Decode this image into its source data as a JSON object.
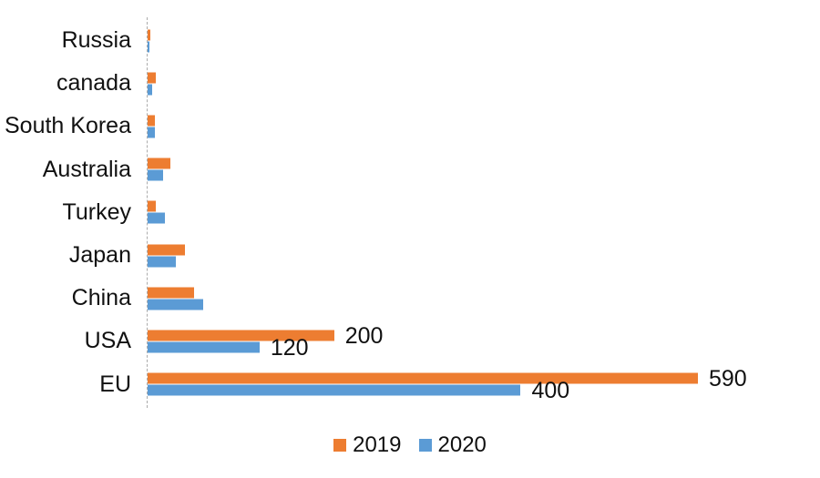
{
  "chart_data": {
    "type": "bar",
    "orientation": "horizontal",
    "title": "",
    "xlabel": "",
    "ylabel": "",
    "grid": "off",
    "background": "#FFFFFF",
    "text_color": "#111111",
    "axis_line_color": "#ABABAB",
    "legend_position": "bottom-center",
    "xlim": [
      0,
      720
    ],
    "categories_top_to_bottom": [
      "Russia",
      "canada",
      "South Korea",
      "Australia",
      "Turkey",
      "Japan",
      "China",
      "USA",
      "EU"
    ],
    "series": [
      {
        "name": "2019",
        "color": "#ED7D31",
        "values": [
          3,
          9,
          8,
          24,
          9,
          40,
          50,
          200,
          590
        ],
        "data_labels": [
          "",
          "",
          "",
          "",
          "",
          "",
          "",
          "200",
          "590"
        ]
      },
      {
        "name": "2020",
        "color": "#5B9BD5",
        "values": [
          2,
          5,
          8,
          17,
          19,
          30,
          60,
          120,
          400
        ],
        "data_labels": [
          "",
          "",
          "",
          "",
          "",
          "",
          "",
          "120",
          "400"
        ]
      }
    ]
  }
}
